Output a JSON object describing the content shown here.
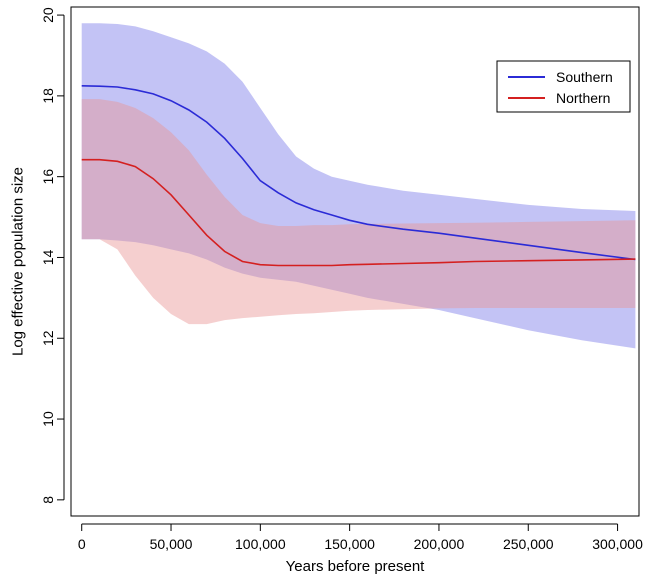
{
  "chart_data": {
    "type": "line",
    "title": "",
    "xlabel": "Years before present",
    "ylabel": "Log effective population size",
    "xlim": [
      -6000,
      312000
    ],
    "ylim": [
      7.6,
      20.2
    ],
    "x_ticks": [
      0,
      50000,
      100000,
      150000,
      200000,
      250000,
      300000
    ],
    "x_tick_labels": [
      "0",
      "50,000",
      "100,000",
      "150,000",
      "200,000",
      "250,000",
      "300,000"
    ],
    "y_ticks": [
      8,
      10,
      12,
      14,
      16,
      18,
      20
    ],
    "y_tick_labels": [
      "8",
      "10",
      "12",
      "14",
      "16",
      "18",
      "20"
    ],
    "grid": false,
    "legend_position": "top-right",
    "series": [
      {
        "name": "Southern",
        "color": "#2b2bd6",
        "band_color": "#7b7be8",
        "x": [
          0,
          10000,
          20000,
          30000,
          40000,
          50000,
          60000,
          70000,
          80000,
          90000,
          100000,
          110000,
          120000,
          130000,
          140000,
          150000,
          160000,
          180000,
          200000,
          220000,
          250000,
          280000,
          310000
        ],
        "median": [
          18.25,
          18.24,
          18.22,
          18.15,
          18.05,
          17.88,
          17.65,
          17.35,
          16.95,
          16.45,
          15.9,
          15.6,
          15.35,
          15.18,
          15.05,
          14.92,
          14.82,
          14.7,
          14.6,
          14.48,
          14.3,
          14.12,
          13.95
        ],
        "upper": [
          19.8,
          19.8,
          19.78,
          19.72,
          19.6,
          19.45,
          19.3,
          19.1,
          18.8,
          18.35,
          17.7,
          17.05,
          16.5,
          16.2,
          16.0,
          15.9,
          15.8,
          15.65,
          15.55,
          15.45,
          15.3,
          15.2,
          15.15
        ],
        "lower": [
          14.45,
          14.45,
          14.42,
          14.38,
          14.3,
          14.2,
          14.1,
          13.95,
          13.75,
          13.6,
          13.5,
          13.45,
          13.4,
          13.3,
          13.2,
          13.1,
          13.0,
          12.85,
          12.7,
          12.5,
          12.2,
          11.95,
          11.75
        ]
      },
      {
        "name": "Northern",
        "color": "#d42020",
        "band_color": "#e89494",
        "x": [
          0,
          10000,
          20000,
          30000,
          40000,
          50000,
          60000,
          70000,
          80000,
          90000,
          100000,
          110000,
          120000,
          130000,
          140000,
          150000,
          160000,
          180000,
          200000,
          220000,
          250000,
          280000,
          310000
        ],
        "median": [
          16.42,
          16.42,
          16.38,
          16.25,
          15.95,
          15.55,
          15.05,
          14.55,
          14.15,
          13.9,
          13.82,
          13.8,
          13.8,
          13.8,
          13.8,
          13.82,
          13.83,
          13.85,
          13.87,
          13.9,
          13.92,
          13.94,
          13.96
        ],
        "upper": [
          17.92,
          17.92,
          17.85,
          17.7,
          17.45,
          17.1,
          16.65,
          16.05,
          15.5,
          15.05,
          14.85,
          14.78,
          14.78,
          14.8,
          14.8,
          14.82,
          14.83,
          14.84,
          14.85,
          14.86,
          14.88,
          14.9,
          14.92
        ],
        "lower": [
          14.45,
          14.45,
          14.2,
          13.55,
          13.0,
          12.6,
          12.35,
          12.35,
          12.45,
          12.5,
          12.53,
          12.57,
          12.6,
          12.62,
          12.65,
          12.68,
          12.7,
          12.72,
          12.74,
          12.75,
          12.75,
          12.75,
          12.75
        ]
      }
    ]
  }
}
